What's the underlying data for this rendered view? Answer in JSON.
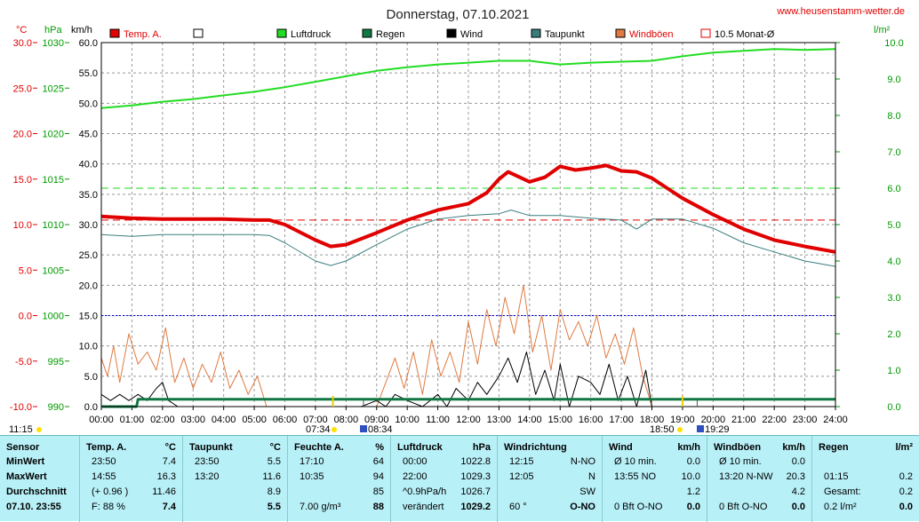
{
  "header": {
    "title": "Donnerstag, 07.10.2021",
    "site": "www.heusenstamm-wetter.de",
    "unit_temp": "°C",
    "unit_press": "hPa",
    "unit_wind": "km/h",
    "unit_rain": "l/m²"
  },
  "legend": [
    {
      "label": "Temp. A.",
      "color": "#e00000",
      "kind": "filled"
    },
    {
      "label": "",
      "color": "#ffffff",
      "kind": "empty"
    },
    {
      "label": "Luftdruck",
      "color": "#22dd22",
      "kind": "filled"
    },
    {
      "label": "Regen",
      "color": "#117744",
      "kind": "filled"
    },
    {
      "label": "Wind",
      "color": "#000000",
      "kind": "filled"
    },
    {
      "label": "Taupunkt",
      "color": "#3a7d7d",
      "kind": "filled"
    },
    {
      "label": "Windböen",
      "color": "#e07a40",
      "kind": "filled"
    },
    {
      "label": "10.5 Monat-Ø",
      "color": "#e00000",
      "kind": "outline"
    }
  ],
  "markers": {
    "left_time": "11:15",
    "sunrise": "07:34",
    "moonrise": "08:34",
    "sunset": "18:50",
    "moonset": "19:29"
  },
  "chart_data": {
    "type": "line",
    "title": "Donnerstag, 07.10.2021",
    "x_unit": "hours",
    "x_ticks": [
      "00:00",
      "01:00",
      "02:00",
      "03:00",
      "04:00",
      "05:00",
      "06:00",
      "07:00",
      "08:00",
      "09:00",
      "10:00",
      "11:00",
      "12:00",
      "13:00",
      "14:00",
      "15:00",
      "16:00",
      "17:00",
      "18:00",
      "19:00",
      "20:00",
      "21:00",
      "22:00",
      "23:00",
      "24:00"
    ],
    "axes": {
      "temp_c": {
        "range": [
          -10,
          30
        ],
        "ticks": [
          "30.0",
          "25.0",
          "20.0",
          "15.0",
          "10.0",
          "5.0",
          "0.0",
          "-5.0",
          "-10.0"
        ],
        "color": "#e00000"
      },
      "pressure_hpa": {
        "range": [
          990,
          1030
        ],
        "ticks": [
          "1030",
          "1025",
          "1020",
          "1015",
          "1010",
          "1005",
          "1000",
          "995",
          "990"
        ],
        "color": "#009900"
      },
      "wind_kmh": {
        "range": [
          0,
          60
        ],
        "ticks": [
          "60.0",
          "55.0",
          "50.0",
          "45.0",
          "40.0",
          "35.0",
          "30.0",
          "25.0",
          "20.0",
          "15.0",
          "10.0",
          "5.0",
          "0.0"
        ],
        "color": "#000000"
      },
      "rain_lm2": {
        "range": [
          0,
          10
        ],
        "ticks": [
          "10.0",
          "9.0",
          "8.0",
          "7.0",
          "6.0",
          "5.0",
          "4.0",
          "3.0",
          "2.0",
          "1.0",
          "0.0"
        ],
        "color": "#009900"
      }
    },
    "reference_lines": [
      {
        "name": "10.5 Monat-Ø",
        "axis": "temp_c",
        "value": 10.5,
        "color": "#e00000",
        "style": "dashed"
      },
      {
        "axis": "rain_lm2",
        "value": 6.0,
        "color": "#22dd22",
        "style": "dashed"
      },
      {
        "axis": "temp_c",
        "value": 0.0,
        "color": "#0000dd",
        "style": "dotted"
      }
    ],
    "series": [
      {
        "name": "Temp. A.",
        "axis": "temp_c",
        "color": "#e00000",
        "x": [
          0,
          1,
          2,
          3,
          4,
          5,
          5.5,
          6,
          7,
          7.5,
          8,
          9,
          10,
          11,
          12,
          12.6,
          13,
          13.3,
          14,
          14.5,
          15,
          15.5,
          16,
          16.5,
          17,
          17.5,
          18,
          18.5,
          19,
          20,
          21,
          22,
          23,
          24
        ],
        "y": [
          10.9,
          10.7,
          10.6,
          10.6,
          10.6,
          10.5,
          10.5,
          10.0,
          8.3,
          7.6,
          7.8,
          9.1,
          10.5,
          11.6,
          12.3,
          13.5,
          15.0,
          15.8,
          14.7,
          15.2,
          16.4,
          16.0,
          16.2,
          16.5,
          15.9,
          15.8,
          15.1,
          14.0,
          12.9,
          11.1,
          9.5,
          8.3,
          7.6,
          7.0
        ]
      },
      {
        "name": "Taupunkt",
        "axis": "temp_c",
        "color": "#3a7d7d",
        "x": [
          0,
          1,
          2,
          3,
          4,
          5,
          5.5,
          6,
          7,
          7.5,
          8,
          9,
          10,
          11,
          12,
          13,
          13.4,
          14,
          15,
          16,
          17,
          17.5,
          18,
          19,
          20,
          21,
          22,
          23,
          24
        ],
        "y": [
          8.9,
          8.7,
          8.9,
          8.9,
          8.9,
          8.9,
          8.8,
          8.0,
          6.0,
          5.5,
          6.0,
          7.8,
          9.5,
          10.6,
          11.0,
          11.2,
          11.6,
          11.0,
          11.0,
          10.7,
          10.5,
          9.5,
          10.6,
          10.6,
          9.6,
          8.0,
          7.0,
          6.0,
          5.4
        ]
      },
      {
        "name": "Luftdruck",
        "axis": "pressure_hpa",
        "color": "#22dd22",
        "x": [
          0,
          1,
          2,
          3,
          4,
          5,
          6,
          7,
          8,
          9,
          10,
          11,
          12,
          13,
          14,
          15,
          16,
          17,
          18,
          19,
          20,
          21,
          22,
          23,
          24
        ],
        "y": [
          1022.8,
          1023.1,
          1023.5,
          1023.8,
          1024.2,
          1024.6,
          1025.1,
          1025.7,
          1026.3,
          1026.9,
          1027.3,
          1027.6,
          1027.8,
          1028.0,
          1028.0,
          1027.6,
          1027.8,
          1027.9,
          1028.0,
          1028.5,
          1028.9,
          1029.1,
          1029.3,
          1029.2,
          1029.3
        ]
      },
      {
        "name": "Regen",
        "axis": "rain_lm2",
        "color": "#117744",
        "x": [
          0,
          1.15,
          1.2,
          24
        ],
        "y": [
          0,
          0,
          0.2,
          0.2
        ]
      },
      {
        "name": "Wind",
        "axis": "wind_kmh",
        "color": "#000000",
        "x": [
          0,
          0.3,
          0.6,
          0.9,
          1.2,
          1.5,
          1.8,
          2.0,
          2.2,
          2.5,
          8.5,
          9.0,
          9.3,
          9.6,
          10,
          10.5,
          11,
          11.3,
          11.6,
          12,
          12.3,
          12.6,
          13,
          13.3,
          13.6,
          13.9,
          14.2,
          14.5,
          14.8,
          15,
          15.3,
          15.6,
          16,
          16.3,
          16.6,
          16.9,
          17.2,
          17.5,
          17.8,
          18,
          18.5,
          24
        ],
        "y": [
          2,
          1,
          2,
          1,
          2,
          1,
          3,
          4,
          1,
          0,
          0,
          1,
          0,
          2,
          1,
          0,
          2,
          0,
          3,
          1,
          4,
          2,
          5,
          8,
          4,
          9,
          2,
          6,
          1,
          7,
          0,
          5,
          4,
          2,
          7,
          1,
          5,
          0,
          6,
          0,
          0,
          0
        ]
      },
      {
        "name": "Windböen",
        "axis": "wind_kmh",
        "color": "#e07a40",
        "x": [
          0,
          0.2,
          0.4,
          0.6,
          0.9,
          1.2,
          1.5,
          1.8,
          2.1,
          2.4,
          2.7,
          3.0,
          3.3,
          3.6,
          3.9,
          4.2,
          4.5,
          4.8,
          5.1,
          5.4,
          9.0,
          9.3,
          9.6,
          9.9,
          10.2,
          10.5,
          10.8,
          11.1,
          11.4,
          11.7,
          12.0,
          12.3,
          12.6,
          12.9,
          13.2,
          13.5,
          13.8,
          14.1,
          14.4,
          14.7,
          15.0,
          15.3,
          15.6,
          15.9,
          16.2,
          16.5,
          16.8,
          17.1,
          17.4,
          17.7,
          18.0,
          18.3,
          24
        ],
        "y": [
          8,
          5,
          10,
          4,
          12,
          7,
          9,
          6,
          13,
          4,
          8,
          3,
          7,
          4,
          9,
          3,
          6,
          2,
          5,
          0,
          0,
          4,
          8,
          3,
          9,
          2,
          11,
          5,
          9,
          4,
          14,
          7,
          16,
          10,
          18,
          12,
          20,
          9,
          15,
          6,
          16,
          11,
          14,
          10,
          15,
          8,
          12,
          7,
          13,
          5,
          0,
          0,
          0
        ]
      }
    ]
  },
  "table": {
    "columns": [
      {
        "title": "Sensor",
        "unit": "",
        "rows": [
          [
            "MinWert",
            ""
          ],
          [
            "MaxWert",
            ""
          ],
          [
            "Durchschnitt",
            ""
          ],
          [
            "07.10. 23:55",
            ""
          ]
        ]
      },
      {
        "title": "Temp. A.",
        "unit": "°C",
        "rows": [
          [
            "23:50",
            "7.4"
          ],
          [
            "14:55",
            "16.3"
          ],
          [
            "(+ 0.96 )",
            "11.46"
          ],
          [
            "F: 88 %",
            "7.4"
          ]
        ]
      },
      {
        "title": "Taupunkt",
        "unit": "°C",
        "rows": [
          [
            "23:50",
            "5.5"
          ],
          [
            "13:20",
            "11.6"
          ],
          [
            "",
            "8.9"
          ],
          [
            "",
            "5.5"
          ]
        ]
      },
      {
        "title": "Feuchte A.",
        "unit": "%",
        "rows": [
          [
            "17:10",
            "64"
          ],
          [
            "10:35",
            "94"
          ],
          [
            "",
            "85"
          ],
          [
            "7.00 g/m³",
            "88"
          ]
        ]
      },
      {
        "title": "Luftdruck",
        "unit": "hPa",
        "rows": [
          [
            "00:00",
            "1022.8"
          ],
          [
            "22:00",
            "1029.3"
          ],
          [
            "^0.9hPa/h",
            "1026.7"
          ],
          [
            "verändert",
            "1029.2"
          ]
        ]
      },
      {
        "title": "Windrichtung",
        "unit": "",
        "rows": [
          [
            "12:15",
            "N-NO"
          ],
          [
            "12:05",
            "N"
          ],
          [
            "",
            "SW"
          ],
          [
            "60 °",
            "O-NO"
          ]
        ]
      },
      {
        "title": "Wind",
        "unit": "km/h",
        "rows": [
          [
            "Ø 10 min.",
            "0.0"
          ],
          [
            "13:55    NO",
            "10.0"
          ],
          [
            "",
            "1.2"
          ],
          [
            "0 Bft O-NO",
            "0.0"
          ]
        ]
      },
      {
        "title": "Windböen",
        "unit": "km/h",
        "rows": [
          [
            "Ø 10 min.",
            "0.0"
          ],
          [
            "13:20   N-NW",
            "20.3"
          ],
          [
            "",
            "4.2"
          ],
          [
            "0 Bft O-NO",
            "0.0"
          ]
        ]
      },
      {
        "title": "Regen",
        "unit": "l/m²",
        "rows": [
          [
            "",
            ""
          ],
          [
            "01:15",
            "0.2"
          ],
          [
            "Gesamt:",
            "0.2"
          ],
          [
            "0.2 l/m²",
            "0.0"
          ]
        ]
      }
    ]
  }
}
